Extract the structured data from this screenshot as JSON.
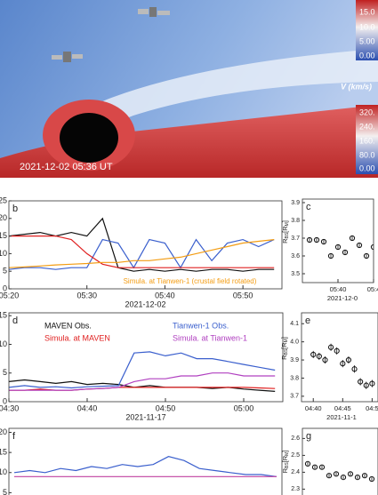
{
  "simulation": {
    "timestamp": "2021-12-02 05:36 UT",
    "colorbar_top": {
      "labels": [
        "15.0",
        "10.0",
        "5.00",
        "0.00"
      ]
    },
    "colorbar_velocity": {
      "title": "V (km/s)",
      "labels": [
        "320.",
        "240.",
        "160.",
        "80.0",
        "0.00"
      ]
    }
  },
  "chart_data": [
    {
      "type": "line",
      "label": "b",
      "xlabel": "2021-12-02",
      "x": [
        "05:20",
        "05:22",
        "05:24",
        "05:26",
        "05:28",
        "05:30",
        "05:32",
        "05:34",
        "05:36",
        "05:38",
        "05:40",
        "05:42",
        "05:44",
        "05:46",
        "05:48",
        "05:50",
        "05:52",
        "05:54"
      ],
      "xlim": [
        "05:20",
        "05:55"
      ],
      "xticks": [
        "05:20",
        "05:30",
        "05:40",
        "05:50"
      ],
      "ylim": [
        0,
        25
      ],
      "yticks": [
        0,
        5,
        10,
        15,
        20,
        25
      ],
      "series": [
        {
          "color": "#111111",
          "values": [
            15,
            15.5,
            16,
            15,
            16,
            15,
            20,
            6,
            5,
            5.5,
            5,
            5.5,
            5,
            5.5,
            5.5,
            5,
            5.5,
            5.5
          ]
        },
        {
          "color": "#3a5fcd",
          "values": [
            5.5,
            6,
            6,
            5.5,
            6,
            6,
            14,
            13,
            6,
            14,
            13,
            6,
            14,
            8,
            13,
            14,
            12,
            14
          ]
        },
        {
          "color": "#e02020",
          "values": [
            15,
            15,
            15,
            15,
            14,
            10,
            7,
            6,
            6,
            6,
            6,
            6,
            6,
            6,
            6,
            6,
            6,
            6
          ]
        },
        {
          "name": "Simula. at Tianwen-1 (crustal field rotated)",
          "color": "#f39c12",
          "values": [
            6,
            6.2,
            6.5,
            6.8,
            7,
            7.2,
            7.5,
            7.5,
            8,
            8,
            8.5,
            9,
            10,
            11,
            12,
            13,
            13.5,
            14
          ]
        }
      ]
    },
    {
      "type": "scatter",
      "label": "c",
      "ylabel": [
        "R",
        "BS",
        "[R",
        "M",
        "]"
      ],
      "xlabel": "2021-12-0",
      "x": [
        "05:36",
        "05:37",
        "05:38",
        "05:39",
        "05:40",
        "05:41",
        "05:42",
        "05:43",
        "05:44",
        "05:45"
      ],
      "xlim": [
        "05:35",
        "05:45"
      ],
      "xticks": [
        "05:40",
        {
          "value": "05:45",
          "label": "05:4"
        }
      ],
      "ylim": [
        3.45,
        3.92
      ],
      "yticks": [
        3.5,
        3.6,
        3.7,
        3.8,
        3.9
      ],
      "color": "#111111",
      "values": [
        3.69,
        3.69,
        3.68,
        3.6,
        3.65,
        3.62,
        3.7,
        3.66,
        3.6,
        3.65
      ],
      "errors": [
        0.015,
        0.015,
        0.015,
        0.015,
        0.015,
        0.015,
        0.015,
        0.015,
        0.015,
        0.015
      ]
    },
    {
      "type": "line",
      "label": "d",
      "xlabel": "2021-11-17",
      "x": [
        "04:30",
        "04:32",
        "04:34",
        "04:36",
        "04:38",
        "04:40",
        "04:42",
        "04:44",
        "04:46",
        "04:48",
        "04:50",
        "04:52",
        "04:54",
        "04:56",
        "04:58",
        "05:00",
        "05:02",
        "05:04"
      ],
      "xlim": [
        "04:30",
        "05:05"
      ],
      "xticks": [
        "04:30",
        "04:40",
        "04:50",
        "05:00"
      ],
      "ylim": [
        0,
        15.5
      ],
      "yticks": [
        0,
        5,
        10,
        15
      ],
      "series": [
        {
          "name": "MAVEN Obs.",
          "color": "#111111",
          "values": [
            3.5,
            3.8,
            3.5,
            3.2,
            3.5,
            3,
            3.2,
            3,
            2.5,
            2.8,
            2.5,
            2.5,
            2.5,
            2.3,
            2.5,
            2.2,
            2,
            1.8
          ]
        },
        {
          "name": "Tianwen-1 Obs.",
          "color": "#3a5fcd",
          "values": [
            2.5,
            2.8,
            2.5,
            2.6,
            2.4,
            2.6,
            2.7,
            2.8,
            8.5,
            8.7,
            8,
            8.5,
            7.5,
            7.5,
            7,
            6.5,
            6,
            5.5
          ]
        },
        {
          "name": "Simula. at MAVEN",
          "color": "#e02020",
          "values": [
            2,
            2,
            2.2,
            2,
            2,
            2.2,
            2.3,
            2.5,
            2.5,
            2.5,
            2.5,
            2.5,
            2.5,
            2.5,
            2.5,
            2.5,
            2.4,
            2.3
          ]
        },
        {
          "name": "Simula. at Tianwen-1",
          "color": "#b040c0",
          "values": [
            2,
            2,
            2,
            2,
            2,
            2.2,
            2.3,
            2.5,
            3.5,
            4,
            4,
            4.5,
            4.5,
            5,
            5,
            4.5,
            4.5,
            4.5
          ]
        }
      ]
    },
    {
      "type": "scatter",
      "label": "e",
      "ylabel": [
        "R",
        "BS",
        "[R",
        "M",
        "]"
      ],
      "xlabel": "2021-11-1",
      "x": [
        "04:40",
        "04:41",
        "04:42",
        "04:43",
        "04:44",
        "04:45",
        "04:46",
        "04:47",
        "04:48",
        "04:49",
        "04:50"
      ],
      "xlim": [
        "04:38",
        "04:51"
      ],
      "xticks": [
        "04:40",
        "04:45",
        {
          "value": "04:50",
          "label": "04:5"
        }
      ],
      "ylim": [
        3.67,
        4.16
      ],
      "yticks": [
        3.7,
        3.8,
        3.9,
        {
          "value": 4,
          "label": "4.0"
        },
        4.1
      ],
      "color": "#111111",
      "values": [
        3.93,
        3.92,
        3.9,
        3.97,
        3.95,
        3.88,
        3.9,
        3.85,
        3.78,
        3.76,
        3.77
      ],
      "errors": [
        0.02,
        0.02,
        0.02,
        0.02,
        0.02,
        0.02,
        0.02,
        0.02,
        0.02,
        0.02,
        0.02
      ]
    },
    {
      "type": "line",
      "label": "f",
      "ylim": [
        0,
        21
      ],
      "yticks": [
        5,
        10,
        15,
        20
      ],
      "series": [
        {
          "color": "#3a5fcd",
          "values": [
            10,
            10.5,
            10,
            11,
            10.5,
            11.5,
            11,
            12,
            11.5,
            12,
            14,
            13,
            11,
            10.5,
            10,
            9.5,
            9.5,
            9
          ]
        },
        {
          "color": "#c040a0",
          "values": [
            9,
            9,
            9,
            9,
            9,
            9,
            9,
            9,
            9,
            9,
            9,
            9,
            9,
            9,
            9,
            9,
            9,
            9
          ]
        }
      ]
    },
    {
      "type": "scatter",
      "label": "g",
      "ylabel": [
        "R",
        "BS",
        "[R",
        "M",
        "]"
      ],
      "ylim": [
        2.16,
        2.66
      ],
      "yticks": [
        2.3,
        2.4,
        2.5,
        2.6
      ],
      "color": "#111111",
      "values": [
        2.45,
        2.43,
        2.43,
        2.38,
        2.39,
        2.37,
        2.39,
        2.37,
        2.38,
        2.36
      ],
      "errors": [
        0.01,
        0.01,
        0.01,
        0.01,
        0.01,
        0.01,
        0.01,
        0.01,
        0.01,
        0.01
      ]
    }
  ]
}
